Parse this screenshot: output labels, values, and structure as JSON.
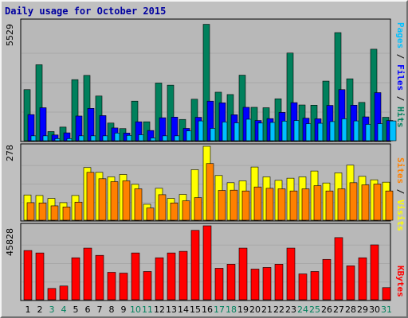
{
  "title": "Daily usage for October 2015",
  "colors": {
    "frame": "#c0c0c0",
    "plot_bg": "#b8b8b8",
    "gridline": "#a8a8a8",
    "hits": "#00805c",
    "files": "#0000ff",
    "pages": "#00c0ff",
    "visits": "#ffff00",
    "sites": "#ff8000",
    "kbytes": "#ff0000",
    "title": "#0000a0",
    "weekday_label": "#000000",
    "weekend_label": "#00805c"
  },
  "chart_data": [
    {
      "type": "bar",
      "panel": "hits-files-pages",
      "max_label": "5529",
      "ylim": [
        0,
        5529
      ],
      "categories": [
        "1",
        "2",
        "3",
        "4",
        "5",
        "6",
        "7",
        "8",
        "9",
        "10",
        "11",
        "12",
        "13",
        "14",
        "15",
        "16",
        "17",
        "18",
        "19",
        "20",
        "21",
        "22",
        "23",
        "24",
        "25",
        "26",
        "27",
        "28",
        "29",
        "30",
        "31"
      ],
      "weekend_days": [
        "3",
        "4",
        "10",
        "11",
        "17",
        "18",
        "24",
        "25",
        "31"
      ],
      "legend": [
        "Pages",
        "Files",
        "Hits"
      ],
      "series": [
        {
          "name": "Hits",
          "values": [
            2400,
            3570,
            430,
            640,
            2870,
            3070,
            2100,
            830,
            570,
            1860,
            890,
            2710,
            2610,
            1000,
            1950,
            5470,
            2280,
            2170,
            3080,
            1570,
            1550,
            1970,
            4120,
            1680,
            1670,
            2800,
            5080,
            2910,
            1800,
            4300,
            1100
          ]
        },
        {
          "name": "Files",
          "values": [
            1230,
            1550,
            270,
            370,
            1160,
            1520,
            1180,
            600,
            360,
            890,
            480,
            1080,
            1110,
            580,
            1100,
            1860,
            1780,
            1220,
            1570,
            950,
            1040,
            1330,
            1790,
            1060,
            1030,
            1660,
            2400,
            1670,
            1120,
            2260,
            950
          ]
        },
        {
          "name": "Pages",
          "values": [
            230,
            230,
            100,
            100,
            230,
            230,
            230,
            360,
            250,
            280,
            130,
            230,
            230,
            460,
            930,
            580,
            880,
            840,
            1010,
            830,
            860,
            920,
            950,
            800,
            820,
            900,
            1030,
            930,
            770,
            800,
            930
          ]
        }
      ]
    },
    {
      "type": "bar",
      "panel": "visits-sites",
      "max_label": "278",
      "ylim": [
        0,
        278
      ],
      "categories": [
        "1",
        "2",
        "3",
        "4",
        "5",
        "6",
        "7",
        "8",
        "9",
        "10",
        "11",
        "12",
        "13",
        "14",
        "15",
        "16",
        "17",
        "18",
        "19",
        "20",
        "21",
        "22",
        "23",
        "24",
        "25",
        "26",
        "27",
        "28",
        "29",
        "30",
        "31"
      ],
      "legend": [
        "Sites",
        "Visits"
      ],
      "series": [
        {
          "name": "Visits",
          "values": [
            95,
            93,
            82,
            66,
            93,
            198,
            180,
            163,
            172,
            135,
            60,
            120,
            82,
            97,
            190,
            278,
            168,
            141,
            148,
            200,
            163,
            150,
            158,
            163,
            185,
            140,
            178,
            207,
            165,
            152,
            143
          ]
        },
        {
          "name": "Sites",
          "values": [
            66,
            65,
            54,
            50,
            68,
            180,
            156,
            145,
            148,
            118,
            46,
            96,
            65,
            73,
            85,
            213,
            112,
            113,
            110,
            125,
            120,
            118,
            110,
            118,
            130,
            110,
            118,
            141,
            133,
            136,
            110
          ]
        }
      ]
    },
    {
      "type": "bar",
      "panel": "kbytes",
      "max_label": "45828",
      "ylim": [
        0,
        45828
      ],
      "categories": [
        "1",
        "2",
        "3",
        "4",
        "5",
        "6",
        "7",
        "8",
        "9",
        "10",
        "11",
        "12",
        "13",
        "14",
        "15",
        "16",
        "17",
        "18",
        "19",
        "20",
        "21",
        "22",
        "23",
        "24",
        "25",
        "26",
        "27",
        "28",
        "29",
        "30",
        "31"
      ],
      "legend": [
        "KBytes"
      ],
      "series": [
        {
          "name": "KBytes",
          "values": [
            30500,
            29000,
            7000,
            8500,
            26000,
            32000,
            27500,
            17000,
            16500,
            29000,
            17500,
            26000,
            29000,
            30000,
            43000,
            45828,
            19500,
            22000,
            32000,
            19000,
            20000,
            22000,
            32000,
            16000,
            17500,
            25000,
            38500,
            21000,
            26000,
            34000,
            7500
          ]
        }
      ]
    }
  ]
}
